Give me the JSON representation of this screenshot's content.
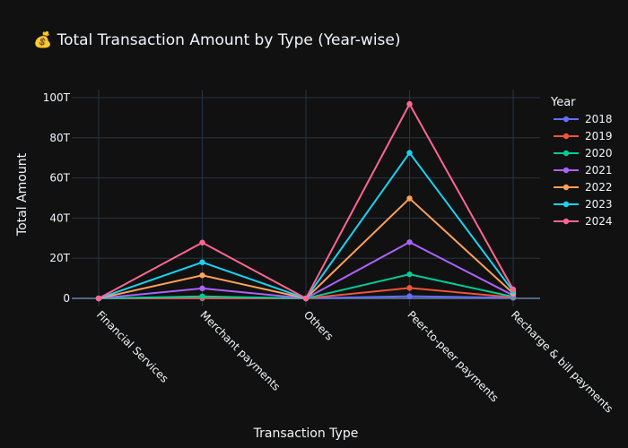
{
  "chart_data": {
    "type": "line",
    "title": "💰 Total Transaction Amount by Type (Year-wise)",
    "xlabel": "Transaction Type",
    "ylabel": "Total Amount",
    "categories": [
      "Financial Services",
      "Merchant payments",
      "Others",
      "Peer-to-peer payments",
      "Recharge & bill payments"
    ],
    "ylim": [
      -4,
      104
    ],
    "yticks": [
      0,
      20,
      40,
      60,
      80,
      100
    ],
    "ytick_labels": [
      "0",
      "20T",
      "40T",
      "60T",
      "80T",
      "100T"
    ],
    "grid": true,
    "legend_title": "Year",
    "legend_position": "right",
    "series": [
      {
        "name": "2018",
        "color": "#636efa",
        "values": [
          0.0,
          0.05,
          0.0,
          1.1,
          0.3
        ]
      },
      {
        "name": "2019",
        "color": "#ef553b",
        "values": [
          0.0,
          0.2,
          0.0,
          5.2,
          0.5
        ]
      },
      {
        "name": "2020",
        "color": "#00cc96",
        "values": [
          0.0,
          1.0,
          0.0,
          12.0,
          0.8
        ]
      },
      {
        "name": "2021",
        "color": "#ab63fa",
        "values": [
          0.0,
          5.0,
          0.0,
          28.0,
          1.5
        ]
      },
      {
        "name": "2022",
        "color": "#ffa15a",
        "values": [
          0.0,
          11.5,
          0.0,
          49.8,
          2.5
        ]
      },
      {
        "name": "2023",
        "color": "#19d3f3",
        "values": [
          0.0,
          18.0,
          0.0,
          72.5,
          3.5
        ]
      },
      {
        "name": "2024",
        "color": "#ff6692",
        "values": [
          0.0,
          27.8,
          0.0,
          96.8,
          4.5
        ]
      }
    ]
  }
}
